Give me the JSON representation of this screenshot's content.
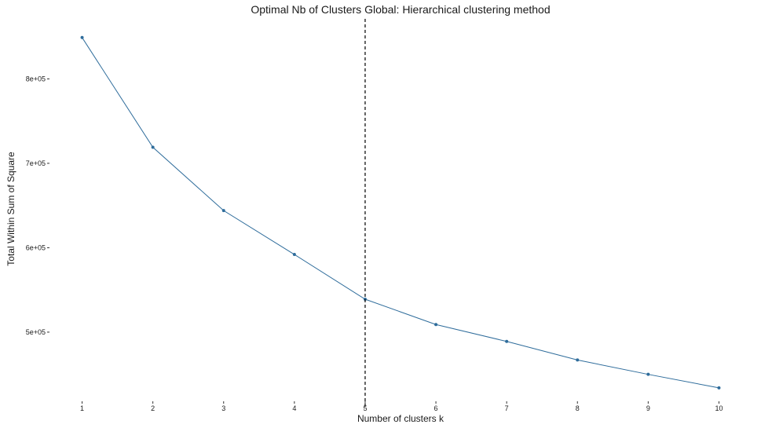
{
  "chart_data": {
    "type": "line",
    "title": "Optimal Nb of Clusters Global: Hierarchical clustering method",
    "xlabel": "Number of clusters k",
    "ylabel": "Total Within Sum of Square",
    "x": [
      1,
      2,
      3,
      4,
      5,
      6,
      7,
      8,
      9,
      10
    ],
    "x_tick_labels": [
      "1",
      "2",
      "3",
      "4",
      "5",
      "6",
      "7",
      "8",
      "9",
      "10"
    ],
    "series": [
      {
        "values": [
          849000,
          719000,
          644000,
          592000,
          539000,
          509000,
          489000,
          467000,
          450000,
          434000
        ]
      }
    ],
    "y_ticks": [
      500000,
      600000,
      700000,
      800000
    ],
    "y_tick_labels": [
      "5e+05",
      "6e+05",
      "7e+05",
      "8e+05"
    ],
    "xlim": [
      0.55,
      10.45
    ],
    "ylim": [
      419000,
      873000
    ],
    "vline_x": 5,
    "grid": false,
    "line_color": "#2e6c9b",
    "vline_color": "#000000"
  }
}
